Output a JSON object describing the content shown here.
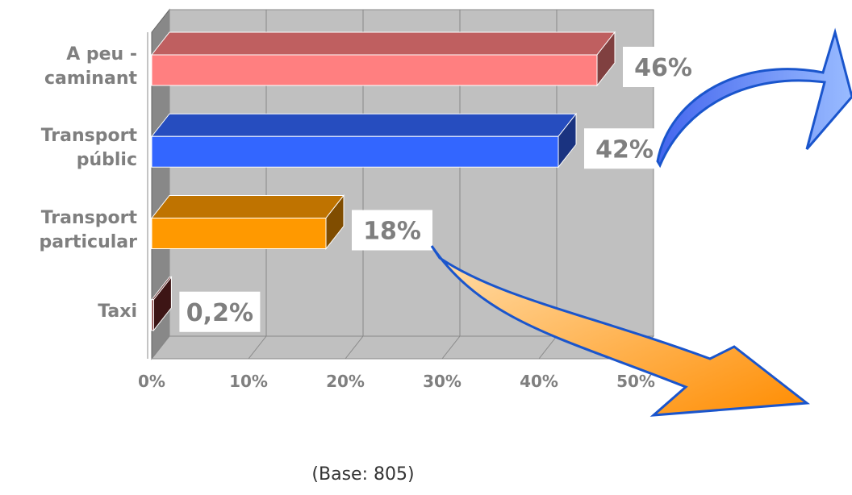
{
  "chart_data": {
    "type": "bar3d",
    "categories": [
      "A peu - caminant",
      "Transport públic",
      "Transport particular",
      "Taxi"
    ],
    "values": [
      46,
      42,
      18,
      0.2
    ],
    "value_labels": [
      "46%",
      "42%",
      "18%",
      "0,2%"
    ],
    "colors": [
      "#ff7f80",
      "#3366ff",
      "#ff9900",
      "#7a2a2a"
    ],
    "xlim": [
      0,
      50
    ],
    "xticks": [
      {
        "value": 0,
        "label": "0%"
      },
      {
        "value": 10,
        "label": "10%"
      },
      {
        "value": 20,
        "label": "20%"
      },
      {
        "value": 30,
        "label": "30%"
      },
      {
        "value": 40,
        "label": "40%"
      },
      {
        "value": 50,
        "label": "50%"
      }
    ],
    "grid": true,
    "note": "(Base: 805)"
  }
}
